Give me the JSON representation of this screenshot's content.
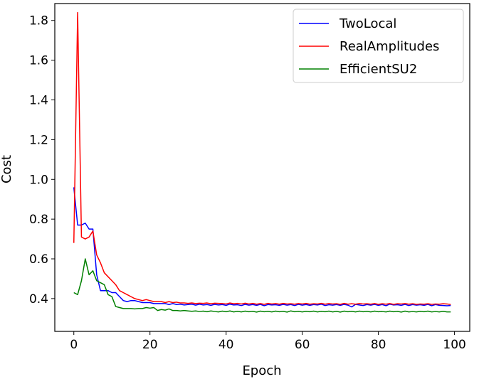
{
  "chart_data": {
    "type": "line",
    "title": "",
    "xlabel": "Epoch",
    "ylabel": "Cost",
    "xlim": [
      -5,
      104
    ],
    "ylim": [
      0.235,
      1.885
    ],
    "xticks": [
      0,
      20,
      40,
      60,
      80,
      100
    ],
    "yticks": [
      0.4,
      0.6,
      0.8,
      1.0,
      1.2,
      1.4,
      1.6,
      1.8
    ],
    "ytick_labels": [
      "0.4",
      "0.6",
      "0.8",
      "1.0",
      "1.2",
      "1.4",
      "1.6",
      "1.8"
    ],
    "grid": false,
    "legend_position": "top-right",
    "series": [
      {
        "name": "TwoLocal",
        "color": "#0000ff",
        "x": [
          0,
          1,
          2,
          3,
          4,
          5,
          6,
          7,
          8,
          9,
          10,
          11,
          12,
          13,
          14,
          15,
          16,
          17,
          18,
          19,
          20,
          21,
          22,
          23,
          24,
          25,
          26,
          27,
          28,
          29,
          30,
          31,
          32,
          33,
          34,
          35,
          36,
          37,
          38,
          39,
          40,
          41,
          42,
          43,
          44,
          45,
          46,
          47,
          48,
          49,
          50,
          51,
          52,
          53,
          54,
          55,
          56,
          57,
          58,
          59,
          60,
          61,
          62,
          63,
          64,
          65,
          66,
          67,
          68,
          69,
          70,
          71,
          72,
          73,
          74,
          75,
          76,
          77,
          78,
          79,
          80,
          81,
          82,
          83,
          84,
          85,
          86,
          87,
          88,
          89,
          90,
          91,
          92,
          93,
          94,
          95,
          96,
          97,
          98,
          99
        ],
        "y": [
          0.96,
          0.77,
          0.77,
          0.78,
          0.75,
          0.75,
          0.52,
          0.44,
          0.44,
          0.44,
          0.43,
          0.43,
          0.41,
          0.39,
          0.385,
          0.39,
          0.39,
          0.385,
          0.38,
          0.38,
          0.38,
          0.375,
          0.375,
          0.375,
          0.375,
          0.37,
          0.375,
          0.37,
          0.372,
          0.368,
          0.37,
          0.372,
          0.367,
          0.372,
          0.368,
          0.37,
          0.366,
          0.371,
          0.368,
          0.37,
          0.366,
          0.372,
          0.368,
          0.369,
          0.365,
          0.371,
          0.367,
          0.37,
          0.366,
          0.371,
          0.364,
          0.37,
          0.368,
          0.369,
          0.366,
          0.371,
          0.367,
          0.37,
          0.365,
          0.371,
          0.367,
          0.37,
          0.366,
          0.37,
          0.368,
          0.372,
          0.365,
          0.369,
          0.367,
          0.37,
          0.366,
          0.371,
          0.367,
          0.358,
          0.371,
          0.368,
          0.365,
          0.37,
          0.367,
          0.371,
          0.366,
          0.37,
          0.364,
          0.372,
          0.368,
          0.369,
          0.366,
          0.371,
          0.365,
          0.37,
          0.367,
          0.369,
          0.366,
          0.371,
          0.364,
          0.37,
          0.366,
          0.365,
          0.364,
          0.365
        ]
      },
      {
        "name": "RealAmplitudes",
        "color": "#ff0000",
        "x": [
          0,
          1,
          2,
          3,
          4,
          5,
          6,
          7,
          8,
          9,
          10,
          11,
          12,
          13,
          14,
          15,
          16,
          17,
          18,
          19,
          20,
          21,
          22,
          23,
          24,
          25,
          26,
          27,
          28,
          29,
          30,
          31,
          32,
          33,
          34,
          35,
          36,
          37,
          38,
          39,
          40,
          41,
          42,
          43,
          44,
          45,
          46,
          47,
          48,
          49,
          50,
          51,
          52,
          53,
          54,
          55,
          56,
          57,
          58,
          59,
          60,
          61,
          62,
          63,
          64,
          65,
          66,
          67,
          68,
          69,
          70,
          71,
          72,
          73,
          74,
          75,
          76,
          77,
          78,
          79,
          80,
          81,
          82,
          83,
          84,
          85,
          86,
          87,
          88,
          89,
          90,
          91,
          92,
          93,
          94,
          95,
          96,
          97,
          98,
          99
        ],
        "y": [
          0.68,
          1.84,
          0.71,
          0.7,
          0.71,
          0.74,
          0.62,
          0.58,
          0.53,
          0.51,
          0.49,
          0.47,
          0.44,
          0.43,
          0.42,
          0.41,
          0.4,
          0.395,
          0.39,
          0.395,
          0.39,
          0.385,
          0.385,
          0.385,
          0.38,
          0.385,
          0.38,
          0.382,
          0.378,
          0.378,
          0.376,
          0.378,
          0.375,
          0.377,
          0.376,
          0.378,
          0.374,
          0.377,
          0.376,
          0.375,
          0.373,
          0.378,
          0.374,
          0.376,
          0.373,
          0.377,
          0.373,
          0.376,
          0.372,
          0.375,
          0.371,
          0.376,
          0.373,
          0.375,
          0.372,
          0.376,
          0.373,
          0.374,
          0.372,
          0.375,
          0.373,
          0.376,
          0.372,
          0.374,
          0.373,
          0.376,
          0.372,
          0.375,
          0.373,
          0.374,
          0.371,
          0.376,
          0.372,
          0.374,
          0.372,
          0.375,
          0.373,
          0.374,
          0.372,
          0.375,
          0.371,
          0.374,
          0.372,
          0.375,
          0.371,
          0.374,
          0.373,
          0.375,
          0.372,
          0.374,
          0.371,
          0.373,
          0.372,
          0.374,
          0.371,
          0.373,
          0.372,
          0.374,
          0.373,
          0.37
        ]
      },
      {
        "name": "EfficientSU2",
        "color": "#008000",
        "x": [
          0,
          1,
          2,
          3,
          4,
          5,
          6,
          7,
          8,
          9,
          10,
          11,
          12,
          13,
          14,
          15,
          16,
          17,
          18,
          19,
          20,
          21,
          22,
          23,
          24,
          25,
          26,
          27,
          28,
          29,
          30,
          31,
          32,
          33,
          34,
          35,
          36,
          37,
          38,
          39,
          40,
          41,
          42,
          43,
          44,
          45,
          46,
          47,
          48,
          49,
          50,
          51,
          52,
          53,
          54,
          55,
          56,
          57,
          58,
          59,
          60,
          61,
          62,
          63,
          64,
          65,
          66,
          67,
          68,
          69,
          70,
          71,
          72,
          73,
          74,
          75,
          76,
          77,
          78,
          79,
          80,
          81,
          82,
          83,
          84,
          85,
          86,
          87,
          88,
          89,
          90,
          91,
          92,
          93,
          94,
          95,
          96,
          97,
          98,
          99
        ],
        "y": [
          0.43,
          0.42,
          0.49,
          0.6,
          0.52,
          0.54,
          0.49,
          0.48,
          0.47,
          0.42,
          0.41,
          0.36,
          0.355,
          0.35,
          0.35,
          0.35,
          0.348,
          0.35,
          0.35,
          0.355,
          0.352,
          0.355,
          0.34,
          0.345,
          0.342,
          0.348,
          0.34,
          0.34,
          0.338,
          0.34,
          0.338,
          0.336,
          0.338,
          0.335,
          0.337,
          0.334,
          0.338,
          0.335,
          0.333,
          0.337,
          0.334,
          0.338,
          0.333,
          0.336,
          0.333,
          0.337,
          0.334,
          0.336,
          0.332,
          0.337,
          0.334,
          0.336,
          0.333,
          0.337,
          0.334,
          0.336,
          0.332,
          0.338,
          0.334,
          0.336,
          0.333,
          0.336,
          0.334,
          0.337,
          0.333,
          0.336,
          0.334,
          0.337,
          0.333,
          0.336,
          0.332,
          0.337,
          0.334,
          0.336,
          0.333,
          0.337,
          0.334,
          0.336,
          0.333,
          0.337,
          0.334,
          0.335,
          0.333,
          0.337,
          0.334,
          0.336,
          0.332,
          0.337,
          0.333,
          0.335,
          0.333,
          0.336,
          0.334,
          0.337,
          0.333,
          0.335,
          0.333,
          0.336,
          0.333,
          0.333
        ]
      }
    ]
  }
}
